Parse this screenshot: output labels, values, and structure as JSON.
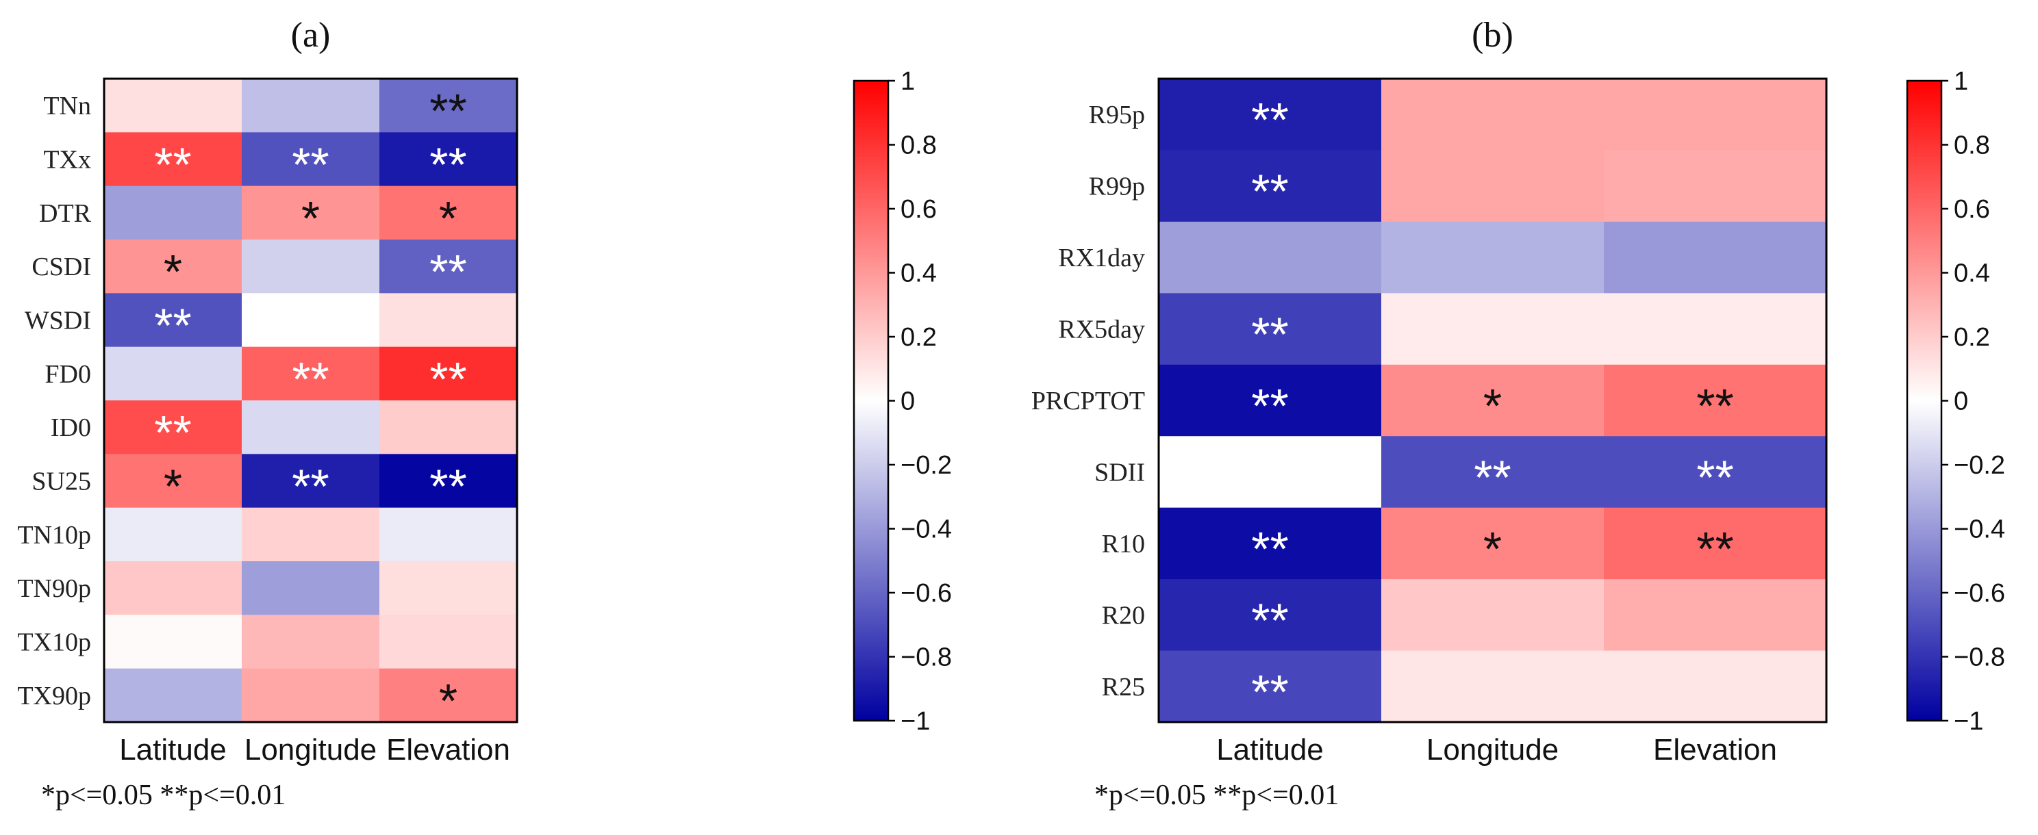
{
  "chart_data": [
    {
      "type": "heatmap",
      "title": "(a)",
      "columns": [
        "Latitude",
        "Longitude",
        "Elevation"
      ],
      "rows": [
        "TNn",
        "TXx",
        "DTR",
        "CSDI",
        "WSDI",
        "FD0",
        "ID0",
        "SU25",
        "TN10p",
        "TN90p",
        "TX10p",
        "TX90p"
      ],
      "values": [
        [
          0.12,
          -0.25,
          -0.58
        ],
        [
          0.72,
          -0.68,
          -0.9
        ],
        [
          -0.38,
          0.42,
          0.55
        ],
        [
          0.42,
          -0.18,
          -0.62
        ],
        [
          -0.68,
          0.0,
          0.12
        ],
        [
          -0.15,
          0.62,
          0.82
        ],
        [
          0.7,
          -0.15,
          0.2
        ],
        [
          0.55,
          -0.88,
          -0.98
        ],
        [
          -0.08,
          0.18,
          -0.08
        ],
        [
          0.22,
          -0.38,
          0.13
        ],
        [
          0.02,
          0.28,
          0.15
        ],
        [
          -0.3,
          0.35,
          0.5
        ]
      ],
      "significance": [
        [
          "",
          "",
          "**"
        ],
        [
          "**",
          "**",
          "**"
        ],
        [
          "",
          "*",
          "*"
        ],
        [
          "*",
          "",
          "**"
        ],
        [
          "**",
          "",
          ""
        ],
        [
          "",
          "**",
          "**"
        ],
        [
          "**",
          "",
          ""
        ],
        [
          "*",
          "**",
          "**"
        ],
        [
          "",
          "",
          ""
        ],
        [
          "",
          "",
          ""
        ],
        [
          "",
          "",
          ""
        ],
        [
          "",
          "",
          "*"
        ]
      ],
      "colorbar": {
        "min": -1,
        "max": 1,
        "ticks": [
          "1",
          "0.8",
          "0.6",
          "0.4",
          "0.2",
          "0",
          "−0.2",
          "−0.4",
          "−0.6",
          "−0.8",
          "−1"
        ]
      },
      "note": "*p<=0.05 **p<=0.01"
    },
    {
      "type": "heatmap",
      "title": "(b)",
      "columns": [
        "Latitude",
        "Longitude",
        "Elevation"
      ],
      "rows": [
        "R95p",
        "R99p",
        "RX1day",
        "RX5day",
        "PRCPTOT",
        "SDII",
        "R10",
        "R20",
        "R25"
      ],
      "values": [
        [
          -0.88,
          0.35,
          0.35
        ],
        [
          -0.85,
          0.35,
          0.33
        ],
        [
          -0.38,
          -0.3,
          -0.4
        ],
        [
          -0.75,
          0.08,
          0.08
        ],
        [
          -0.95,
          0.45,
          0.55
        ],
        [
          0.0,
          -0.7,
          -0.7
        ],
        [
          -0.95,
          0.48,
          0.58
        ],
        [
          -0.85,
          0.22,
          0.32
        ],
        [
          -0.72,
          0.1,
          0.1
        ]
      ],
      "significance": [
        [
          "**",
          "",
          ""
        ],
        [
          "**",
          "",
          ""
        ],
        [
          "",
          "",
          ""
        ],
        [
          "**",
          "",
          ""
        ],
        [
          "**",
          "*",
          "**"
        ],
        [
          "",
          "**",
          "**"
        ],
        [
          "**",
          "*",
          "**"
        ],
        [
          "**",
          "",
          ""
        ],
        [
          "**",
          "",
          ""
        ]
      ],
      "colorbar": {
        "min": -1,
        "max": 1,
        "ticks": [
          "1",
          "0.8",
          "0.6",
          "0.4",
          "0.2",
          "0",
          "−0.2",
          "−0.4",
          "−0.6",
          "−0.8",
          "−1"
        ]
      },
      "note": "*p<=0.05 **p<=0.01"
    }
  ],
  "colors": {
    "negative_end": "#0000a0",
    "mid": "#ffffff",
    "positive_end": "#ff0000",
    "light_star": "#ffffff",
    "dark_star": "#111111"
  }
}
